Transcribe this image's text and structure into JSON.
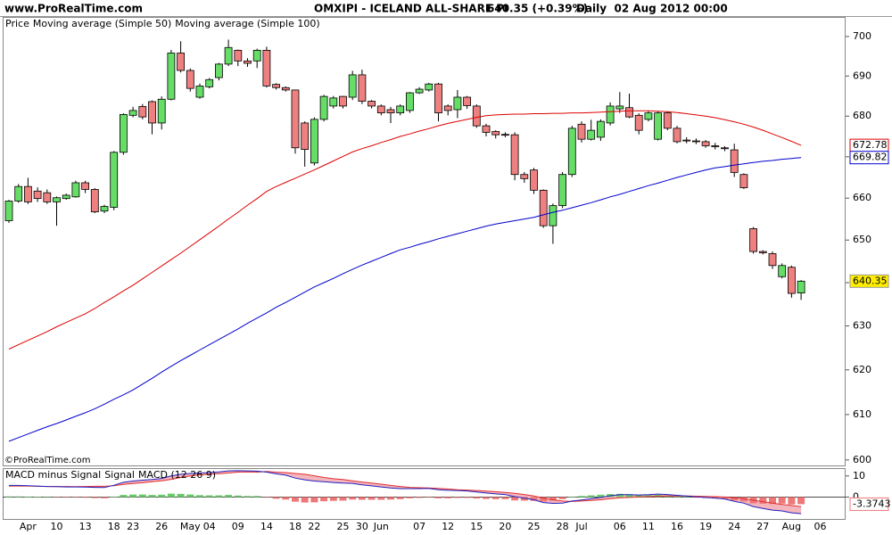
{
  "chart_data": [
    {
      "type": "candlestick",
      "source": "www.ProRealTime.com",
      "title": "OMXIPI - ICELAND ALL-SHARE PI",
      "quote": "640.35 (+0.39%)",
      "period": "Daily  02 Aug 2012 00:00",
      "price_label": "Price",
      "watermark": "©ProRealTime.com",
      "categories": [
        null,
        null,
        "Apr",
        null,
        null,
        "10",
        null,
        null,
        "13",
        null,
        null,
        "18",
        null,
        "23",
        null,
        null,
        "26",
        null,
        null,
        "May",
        null,
        "04",
        null,
        null,
        "09",
        null,
        null,
        "14",
        null,
        null,
        "18",
        null,
        "22",
        null,
        null,
        "25",
        null,
        "30",
        null,
        "Jun",
        null,
        null,
        null,
        "07",
        null,
        null,
        "12",
        null,
        null,
        "15",
        null,
        null,
        "20",
        null,
        null,
        "25",
        null,
        null,
        "28",
        null,
        "Jul",
        null,
        null,
        null,
        "06",
        null,
        null,
        "11",
        null,
        null,
        "16",
        null,
        null,
        "19",
        null,
        null,
        "24",
        null,
        null,
        "27",
        null,
        null,
        "Aug",
        null,
        null,
        "06"
      ],
      "open": [
        654.6,
        659.3,
        662.8,
        661.7,
        661.3,
        659.1,
        659.9,
        660.3,
        663.7,
        662.1,
        656.9,
        657.8,
        671.1,
        680.2,
        682.4,
        683.6,
        678.3,
        684.2,
        695.8,
        691.4,
        684.7,
        687.3,
        689.6,
        693.0,
        696.5,
        693.8,
        693.8,
        696.5,
        687.9,
        687.1,
        686.5,
        678.3,
        668.5,
        679.2,
        682.5,
        684.9,
        684.7,
        690.3,
        683.7,
        682.5,
        681.6,
        680.8,
        681.4,
        685.8,
        686.5,
        688.0,
        682.5,
        681.6,
        684.7,
        682.5,
        677.6,
        676.2,
        675.5,
        675.4,
        665.7,
        666.8,
        661.9,
        653.4,
        658.2,
        665.7,
        678.0,
        674.3,
        674.8,
        678.3,
        681.8,
        682.1,
        680.2,
        679.2,
        674.3,
        680.8,
        677.0,
        674.1,
        673.9,
        673.7,
        672.7,
        672.2,
        671.7,
        665.7,
        652.7,
        647.3,
        646.8,
        641.4,
        643.6,
        637.6,
        null,
        null
      ],
      "high": [
        659.6,
        663.4,
        664.9,
        662.6,
        662.1,
        660.4,
        661.1,
        664.2,
        664.2,
        662.4,
        658.4,
        671.4,
        680.7,
        682.3,
        683.0,
        683.9,
        684.9,
        696.6,
        698.8,
        691.9,
        688.1,
        689.5,
        693.3,
        699.2,
        696.7,
        694.5,
        696.9,
        697.4,
        688.2,
        687.4,
        686.6,
        678.7,
        679.7,
        685.3,
        685.0,
        685.0,
        691.3,
        691.6,
        684.0,
        682.9,
        682.3,
        682.9,
        686.0,
        687.2,
        688.3,
        688.3,
        682.9,
        686.5,
        685.0,
        682.9,
        678.1,
        676.5,
        676.0,
        676.0,
        666.3,
        667.3,
        662.1,
        658.7,
        666.3,
        677.6,
        678.7,
        679.1,
        679.2,
        683.4,
        686.0,
        685.6,
        680.7,
        681.2,
        681.2,
        681.2,
        677.6,
        674.8,
        674.5,
        674.1,
        673.4,
        672.6,
        673.2,
        666.0,
        653.1,
        647.6,
        647.3,
        644.5,
        644.0,
        640.6,
        null,
        null
      ],
      "low": [
        654.1,
        658.9,
        658.6,
        659.1,
        658.6,
        653.4,
        659.6,
        660.1,
        661.2,
        656.4,
        656.4,
        657.1,
        670.5,
        679.7,
        679.2,
        675.5,
        676.7,
        683.9,
        690.9,
        686.1,
        684.3,
        686.9,
        688.9,
        692.5,
        692.5,
        692.3,
        692.0,
        687.1,
        686.6,
        686.1,
        670.8,
        667.6,
        667.9,
        678.7,
        681.9,
        681.9,
        684.0,
        683.0,
        681.9,
        680.2,
        678.3,
        680.2,
        680.8,
        685.5,
        686.1,
        678.7,
        680.2,
        679.5,
        681.8,
        677.1,
        675.0,
        674.5,
        674.8,
        664.3,
        663.7,
        661.0,
        652.9,
        649.1,
        657.6,
        665.1,
        673.5,
        674.0,
        673.9,
        677.7,
        680.8,
        679.5,
        675.5,
        678.7,
        674.0,
        676.5,
        673.3,
        673.3,
        673.1,
        672.2,
        671.8,
        671.4,
        665.1,
        662.2,
        646.8,
        646.6,
        643.2,
        641.0,
        636.5,
        636.0,
        null,
        null
      ],
      "close": [
        659.3,
        662.8,
        659.1,
        659.9,
        659.1,
        660.1,
        660.7,
        663.7,
        662.1,
        656.7,
        658.0,
        671.1,
        680.4,
        681.4,
        679.8,
        678.3,
        684.2,
        695.8,
        691.4,
        686.9,
        687.5,
        689.1,
        693.0,
        697.2,
        693.8,
        693.2,
        696.5,
        687.5,
        687.1,
        686.5,
        672.2,
        671.8,
        679.2,
        684.9,
        684.5,
        682.5,
        690.3,
        683.7,
        682.5,
        680.8,
        680.8,
        682.5,
        685.8,
        686.7,
        688.0,
        680.8,
        681.4,
        684.7,
        682.6,
        677.6,
        676.0,
        675.4,
        675.4,
        665.7,
        664.7,
        661.9,
        653.4,
        658.2,
        665.7,
        677.0,
        674.3,
        676.5,
        678.7,
        682.5,
        682.5,
        679.8,
        676.5,
        680.8,
        680.8,
        677.0,
        673.7,
        673.9,
        673.7,
        672.7,
        672.5,
        672.0,
        666.2,
        662.5,
        647.3,
        647.0,
        644.0,
        644.0,
        637.5,
        640.35,
        null,
        null
      ],
      "up_color": "#66dd66",
      "down_color": "#ee8080",
      "last_value_color": "#ffee00",
      "series": [
        {
          "name": "Moving average (Simple 50)",
          "color": "#dd0000",
          "values": [
            624.7,
            625.7,
            626.7,
            627.7,
            628.7,
            629.8,
            630.8,
            631.8,
            632.8,
            634.0,
            635.4,
            636.7,
            638.1,
            639.4,
            640.9,
            642.4,
            643.9,
            645.4,
            646.9,
            648.5,
            650.1,
            651.7,
            653.3,
            655.0,
            656.6,
            658.3,
            659.9,
            661.6,
            662.8,
            663.8,
            664.8,
            665.8,
            666.8,
            667.9,
            669.0,
            670.1,
            671.2,
            672.0,
            672.7,
            673.5,
            674.2,
            675.0,
            675.6,
            676.3,
            676.9,
            677.6,
            678.2,
            678.7,
            679.2,
            679.7,
            680.1,
            680.3,
            680.4,
            680.5,
            680.5,
            680.6,
            680.6,
            680.7,
            680.7,
            680.8,
            680.8,
            680.9,
            681.0,
            681.1,
            681.2,
            681.3,
            681.3,
            681.3,
            681.2,
            681.1,
            680.9,
            680.6,
            680.3,
            680.0,
            679.6,
            679.1,
            678.6,
            678.0,
            677.3,
            676.5,
            675.6,
            674.7,
            673.8,
            672.78,
            null,
            null
          ]
        },
        {
          "name": "Moving average (Simple 100)",
          "color": "#0000cc",
          "values": [
            604.1,
            604.9,
            605.7,
            606.5,
            607.3,
            608.0,
            608.8,
            609.6,
            610.4,
            611.3,
            612.3,
            613.4,
            614.4,
            615.5,
            616.8,
            618.1,
            619.5,
            620.8,
            622.1,
            623.3,
            624.5,
            625.7,
            626.9,
            628.1,
            629.3,
            630.6,
            631.8,
            633.0,
            634.3,
            635.4,
            636.6,
            637.8,
            639.0,
            640.0,
            641.0,
            642.1,
            643.1,
            644.1,
            645.0,
            645.9,
            646.8,
            647.7,
            648.3,
            649.0,
            649.6,
            650.3,
            650.9,
            651.5,
            652.1,
            652.7,
            653.3,
            653.8,
            654.2,
            654.6,
            655.0,
            655.4,
            656.0,
            656.6,
            657.1,
            657.7,
            658.3,
            658.9,
            659.6,
            660.3,
            660.9,
            661.6,
            662.3,
            663.0,
            663.6,
            664.3,
            665.0,
            665.6,
            666.2,
            666.8,
            667.3,
            667.6,
            668.0,
            668.3,
            668.6,
            668.9,
            669.1,
            669.4,
            669.6,
            669.82,
            null,
            null
          ]
        }
      ],
      "ylim": [
        598.8,
        705
      ],
      "yticks": [
        600,
        610,
        620,
        630,
        640,
        650,
        660,
        670,
        680,
        690,
        700
      ],
      "log_scale": true
    },
    {
      "type": "combo",
      "fill_color": "#f5b5bd",
      "series": [
        {
          "name": "MACD minus Signal",
          "kind": "bar",
          "color": "#ee7777",
          "positive_color": "#66cc66",
          "values": [
            0.3,
            0.3,
            0.2,
            0.1,
            0.0,
            -0.1,
            -0.2,
            -0.1,
            -0.3,
            -0.5,
            -0.6,
            0.2,
            1.0,
            1.2,
            1.2,
            1.0,
            1.1,
            1.6,
            1.5,
            1.2,
            0.9,
            0.8,
            0.8,
            1.0,
            0.7,
            0.5,
            0.5,
            -0.3,
            -0.8,
            -1.2,
            -2.2,
            -2.6,
            -2.5,
            -2.0,
            -1.8,
            -1.7,
            -1.2,
            -1.3,
            -1.3,
            -1.3,
            -1.2,
            -1.0,
            -0.6,
            -0.4,
            -0.2,
            -0.6,
            -0.6,
            -0.4,
            -0.4,
            -0.7,
            -0.9,
            -1.0,
            -1.0,
            -1.6,
            -1.7,
            -1.8,
            -2.1,
            -1.7,
            -1.0,
            0.2,
            0.5,
            0.8,
            1.1,
            1.4,
            1.5,
            1.3,
            1.0,
            0.9,
            1.0,
            0.7,
            0.3,
            0.0,
            -0.3,
            -0.5,
            -0.7,
            -0.9,
            -1.6,
            -2.1,
            -3.0,
            -3.2,
            -3.3,
            -3.1,
            -3.5,
            -3.3743,
            null,
            null
          ]
        },
        {
          "name": "Signal",
          "kind": "line",
          "color": "#e03030",
          "values": [
            5.2,
            5.2,
            5.2,
            5.1,
            5.0,
            5.0,
            5.0,
            4.9,
            5.0,
            5.1,
            5.1,
            5.4,
            6.0,
            6.4,
            6.8,
            7.3,
            7.7,
            8.4,
            9.3,
            10.0,
            10.5,
            10.8,
            11.1,
            11.4,
            11.8,
            11.9,
            11.8,
            12.1,
            11.8,
            11.6,
            11.2,
            10.8,
            10.1,
            9.3,
            8.7,
            8.3,
            7.7,
            7.1,
            6.6,
            6.1,
            5.5,
            5.0,
            4.6,
            4.4,
            4.3,
            4.1,
            3.8,
            3.5,
            3.3,
            3.1,
            2.8,
            2.5,
            2.2,
            1.8,
            1.2,
            0.5,
            -0.5,
            -1.3,
            -1.9,
            -2.1,
            -1.9,
            -1.6,
            -1.3,
            -0.8,
            -0.4,
            -0.2,
            0.0,
            0.2,
            0.4,
            0.5,
            0.5,
            0.5,
            0.4,
            0.3,
            0.2,
            0.0,
            -0.4,
            -0.8,
            -1.5,
            -2.2,
            -2.9,
            -3.5,
            -4.0,
            -4.5,
            null,
            null
          ]
        },
        {
          "name": "MACD (12 26 9)",
          "kind": "line",
          "color": "#2020c0",
          "values": [
            5.5,
            5.5,
            5.4,
            5.2,
            5.0,
            4.9,
            4.8,
            4.8,
            4.7,
            4.6,
            4.5,
            5.6,
            7.0,
            7.6,
            8.0,
            8.3,
            8.8,
            10.0,
            10.8,
            11.2,
            11.4,
            11.6,
            11.9,
            12.4,
            12.5,
            12.4,
            12.3,
            11.8,
            11.0,
            10.4,
            9.0,
            8.2,
            7.6,
            7.3,
            6.9,
            6.6,
            6.5,
            5.8,
            5.3,
            4.8,
            4.3,
            4.0,
            4.0,
            4.0,
            4.1,
            3.5,
            3.2,
            3.1,
            2.9,
            2.4,
            1.9,
            1.5,
            1.2,
            0.2,
            -0.5,
            -1.3,
            -2.6,
            -3.0,
            -2.9,
            -1.9,
            -1.4,
            -0.8,
            -0.2,
            0.6,
            1.1,
            1.1,
            1.0,
            1.1,
            1.4,
            1.2,
            0.8,
            0.5,
            0.1,
            -0.2,
            -0.5,
            -0.9,
            -2.0,
            -2.9,
            -4.5,
            -5.4,
            -6.2,
            -6.6,
            -7.5,
            -7.9,
            null,
            null
          ]
        }
      ],
      "ylim": [
        -10.4,
        13.3
      ],
      "yticks": [
        0,
        10
      ]
    }
  ]
}
